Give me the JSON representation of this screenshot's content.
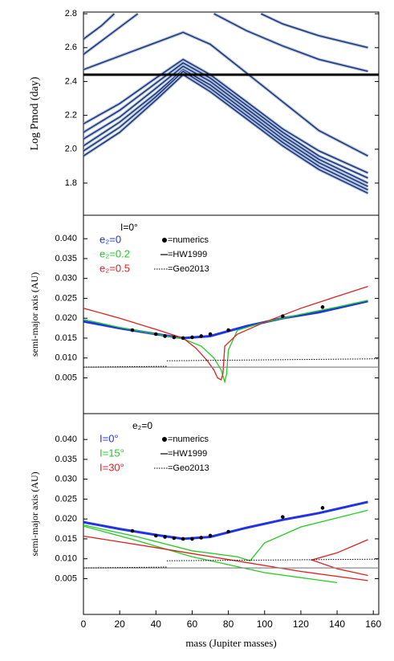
{
  "chart_data": [
    {
      "type": "line",
      "ylabel": "Log Pmod (day)",
      "xlim": [
        0,
        163
      ],
      "ylim": [
        1.61,
        2.81
      ],
      "yticks": [
        1.8,
        {
          "value": 2,
          "label": "2.0"
        },
        2.2,
        2.4,
        2.6,
        2.8
      ],
      "series": [
        {
          "color": "#1c2b66",
          "style": "solid",
          "x": [
            0,
            20,
            40,
            55,
            70,
            90,
            110,
            130,
            157
          ],
          "values": [
            2.47,
            2.55,
            2.63,
            2.69,
            2.62,
            2.45,
            2.28,
            2.11,
            1.96
          ]
        },
        {
          "color": "#1c2b66",
          "style": "solid",
          "x": [
            0,
            20,
            40,
            55,
            70,
            90,
            110,
            130,
            157
          ],
          "values": [
            2.15,
            2.27,
            2.42,
            2.53,
            2.44,
            2.28,
            2.12,
            1.99,
            1.86
          ]
        },
        {
          "color": "#1c2b66",
          "style": "solid",
          "x": [
            0,
            20,
            40,
            55,
            70,
            90,
            110,
            130,
            157
          ],
          "values": [
            2.1,
            2.23,
            2.39,
            2.51,
            2.42,
            2.26,
            2.1,
            1.96,
            1.83
          ]
        },
        {
          "color": "#1c2b66",
          "style": "solid",
          "x": [
            0,
            20,
            40,
            55,
            70,
            90,
            110,
            130,
            157
          ],
          "values": [
            2.06,
            2.19,
            2.36,
            2.49,
            2.4,
            2.24,
            2.08,
            1.94,
            1.8
          ]
        },
        {
          "color": "#1c2b66",
          "style": "solid",
          "x": [
            0,
            20,
            40,
            55,
            70,
            90,
            110,
            130,
            157
          ],
          "values": [
            2.02,
            2.16,
            2.33,
            2.47,
            2.38,
            2.22,
            2.06,
            1.92,
            1.78
          ]
        },
        {
          "color": "#1c2b66",
          "style": "solid",
          "x": [
            0,
            20,
            40,
            55,
            70,
            90,
            110,
            130,
            157
          ],
          "values": [
            1.99,
            2.13,
            2.31,
            2.46,
            2.36,
            2.2,
            2.04,
            1.9,
            1.76
          ]
        },
        {
          "color": "#1c2b66",
          "style": "solid",
          "x": [
            0,
            20,
            40,
            55,
            70,
            90,
            110,
            130,
            157
          ],
          "values": [
            1.96,
            2.1,
            2.29,
            2.44,
            2.34,
            2.18,
            2.02,
            1.88,
            1.74
          ]
        },
        {
          "color": "#1c2b66",
          "style": "solid",
          "x": [
            0,
            10,
            17
          ],
          "values": [
            2.65,
            2.73,
            2.8
          ]
        },
        {
          "color": "#1c2b66",
          "style": "solid",
          "x": [
            0,
            15,
            30
          ],
          "values": [
            2.56,
            2.68,
            2.8
          ]
        },
        {
          "color": "#1c2b66",
          "style": "solid",
          "x": [
            72,
            90,
            110,
            130,
            157
          ],
          "values": [
            2.8,
            2.7,
            2.61,
            2.53,
            2.46
          ]
        },
        {
          "color": "#1c2b66",
          "style": "solid",
          "x": [
            98,
            110,
            130,
            157
          ],
          "values": [
            2.8,
            2.74,
            2.67,
            2.6
          ]
        },
        {
          "color": "#000000",
          "style": "thick",
          "x": [
            0,
            163
          ],
          "values": [
            2.44,
            2.44
          ]
        }
      ]
    },
    {
      "type": "line",
      "ylabel": "semi-major axis (AU)",
      "annotation": "I=0°",
      "xlim": [
        0,
        163
      ],
      "ylim": [
        -0.004,
        0.0459
      ],
      "yticks": [
        0.005,
        {
          "value": 0.01,
          "label": "0.010"
        },
        0.015,
        {
          "value": 0.02,
          "label": "0.020"
        },
        0.025,
        {
          "value": 0.03,
          "label": "0.030"
        },
        0.035,
        {
          "value": 0.04,
          "label": "0.040"
        }
      ],
      "series": [
        {
          "name": "e₂=0",
          "color": "#2233e6",
          "style": "thick",
          "x": [
            0,
            20,
            40,
            55,
            70,
            90,
            110,
            130,
            157
          ],
          "values": [
            0.0192,
            0.0175,
            0.016,
            0.015,
            0.0155,
            0.018,
            0.02,
            0.0215,
            0.0243
          ]
        },
        {
          "name": "e₂=0.2",
          "color": "#22cc22",
          "style": "solid",
          "x": [
            0,
            20,
            40,
            55,
            65,
            72,
            76,
            78,
            79,
            80,
            85,
            100,
            120,
            140,
            157
          ],
          "values": [
            0.0197,
            0.0177,
            0.016,
            0.0148,
            0.013,
            0.01,
            0.007,
            0.004,
            0.006,
            0.012,
            0.017,
            0.019,
            0.021,
            0.0228,
            0.0245
          ]
        },
        {
          "name": "e₂=0.5",
          "color": "#e02020",
          "style": "solid",
          "x": [
            0,
            20,
            40,
            55,
            62,
            68,
            72,
            74,
            76,
            77,
            78,
            85,
            100,
            120,
            140,
            157
          ],
          "values": [
            0.0225,
            0.02,
            0.0172,
            0.015,
            0.0125,
            0.0095,
            0.007,
            0.005,
            0.0045,
            0.006,
            0.013,
            0.016,
            0.019,
            0.0225,
            0.0255,
            0.028
          ]
        },
        {
          "name": "=numerics",
          "color": "#000000",
          "style": "dots",
          "x": [
            27,
            40,
            45,
            50,
            55,
            60,
            65,
            70,
            80,
            110,
            132
          ],
          "values": [
            0.017,
            0.016,
            0.0155,
            0.0152,
            0.015,
            0.0152,
            0.0155,
            0.016,
            0.017,
            0.0205,
            0.0228
          ]
        },
        {
          "name": "=HW1999",
          "color": "#888888",
          "style": "dash",
          "x": [
            0,
            163
          ],
          "values": [
            0.0077,
            0.0077
          ]
        },
        {
          "name": "=Geo2013",
          "color": "#000000",
          "style": "dotted",
          "x": [
            0,
            46,
            46,
            46,
            163
          ],
          "values": [
            0.0077,
            0.0079,
            null,
            0.0093,
            0.0098
          ]
        }
      ]
    },
    {
      "type": "line",
      "ylabel": "semi-major axis (AU)",
      "xlabel": "mass (Jupiter masses)",
      "annotation": "e₂=0",
      "xlim": [
        0,
        163
      ],
      "ylim": [
        -0.004,
        0.0465
      ],
      "xticks": [
        0,
        20,
        40,
        60,
        80,
        100,
        120,
        140,
        160
      ],
      "yticks": [
        0.005,
        {
          "value": 0.01,
          "label": "0.010"
        },
        0.015,
        {
          "value": 0.02,
          "label": "0.020"
        },
        0.025,
        {
          "value": 0.03,
          "label": "0.030"
        },
        0.035,
        {
          "value": 0.04,
          "label": "0.040"
        }
      ],
      "series": [
        {
          "name": "I=0°",
          "color": "#2233e6",
          "style": "thick",
          "x": [
            0,
            20,
            40,
            55,
            70,
            90,
            110,
            130,
            157
          ],
          "values": [
            0.0192,
            0.0175,
            0.016,
            0.015,
            0.0155,
            0.0178,
            0.0198,
            0.0215,
            0.0243
          ]
        },
        {
          "name": "I=15°",
          "color": "#22cc22",
          "style": "solid",
          "x": [
            0,
            30,
            60,
            85,
            92,
            100,
            120,
            157,
            157,
            0,
            30,
            60,
            100,
            140
          ],
          "values": [
            0.0185,
            0.0155,
            0.012,
            0.0105,
            0.0095,
            0.014,
            0.018,
            0.0222,
            null,
            0.0182,
            0.0145,
            0.0105,
            0.0065,
            0.004
          ]
        },
        {
          "name": "I=30°",
          "color": "#e02020",
          "style": "solid",
          "x": [
            0,
            40,
            80,
            120,
            157,
            157,
            157,
            140,
            126,
            140,
            157
          ],
          "values": [
            0.0157,
            0.0128,
            0.0098,
            0.0068,
            0.0045,
            null,
            0.0148,
            0.0115,
            0.0097,
            0.0075,
            0.0058
          ]
        },
        {
          "name": "=numerics",
          "color": "#000000",
          "style": "dots",
          "x": [
            27,
            40,
            45,
            50,
            55,
            60,
            65,
            70,
            80,
            110,
            132
          ],
          "values": [
            0.017,
            0.0158,
            0.0155,
            0.0152,
            0.015,
            0.015,
            0.0153,
            0.0158,
            0.0168,
            0.0205,
            0.0228
          ]
        },
        {
          "name": "=HW1999",
          "color": "#888888",
          "style": "dash",
          "x": [
            0,
            163
          ],
          "values": [
            0.0077,
            0.0077
          ]
        },
        {
          "name": "=Geo2013",
          "color": "#000000",
          "style": "dotted",
          "x": [
            0,
            46,
            46,
            46,
            163
          ],
          "values": [
            0.0077,
            0.0079,
            null,
            0.0095,
            0.0099
          ]
        }
      ]
    }
  ]
}
